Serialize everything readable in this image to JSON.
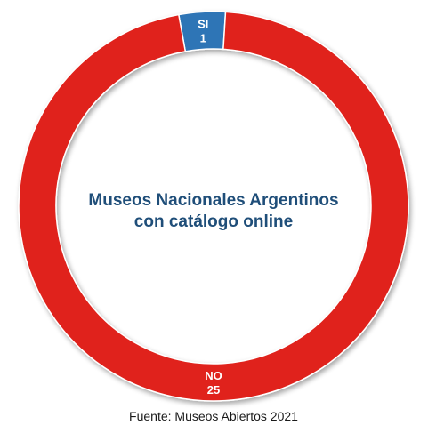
{
  "chart_data": {
    "type": "pie",
    "variant": "donut",
    "title_lines": [
      "Museos Nacionales Argentinos",
      "con catálogo online"
    ],
    "slices": [
      {
        "label": "SI",
        "value": 1,
        "color": "#2e75b6"
      },
      {
        "label": "NO",
        "value": 25,
        "color": "#e0221a"
      }
    ],
    "source": "Fuente: Museos Abiertos 2021",
    "title_color": "#1f4e79",
    "label_color": "#ffffff"
  }
}
